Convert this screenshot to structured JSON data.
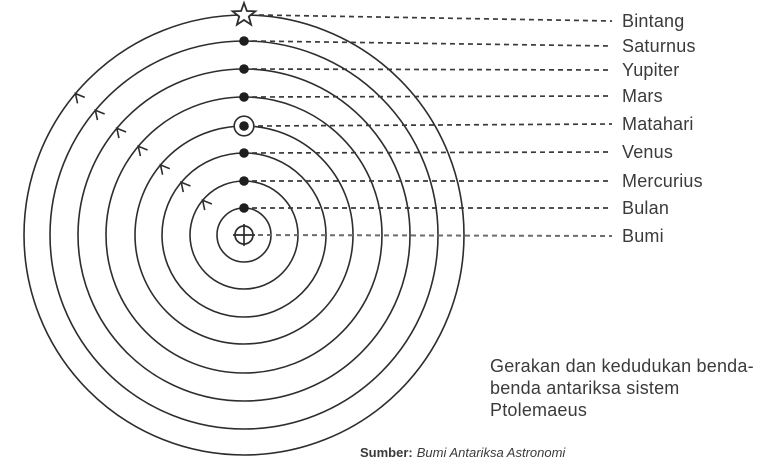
{
  "colors": {
    "background": "#ffffff",
    "orbit_line": "#2d2d2d",
    "leader_dash": "#3a3a3a",
    "leader_dash_bumi": "#6d6d6d",
    "marker_fill": "#1e1e1e",
    "text": "#3b3b3b"
  },
  "diagram": {
    "type": "concentric-orbits-geocentric",
    "system": "Ptolemaeus",
    "center_body": "Bumi",
    "bodies": [
      {
        "label": "Bintang",
        "marker": "star",
        "orbit_radius": 220,
        "arrow": true
      },
      {
        "label": "Saturnus",
        "marker": "dot",
        "orbit_radius": 194,
        "arrow": true
      },
      {
        "label": "Yupiter",
        "marker": "dot",
        "orbit_radius": 166,
        "arrow": true
      },
      {
        "label": "Mars",
        "marker": "dot",
        "orbit_radius": 138,
        "arrow": true
      },
      {
        "label": "Matahari",
        "marker": "ringed-dot",
        "orbit_radius": 109,
        "arrow": true
      },
      {
        "label": "Venus",
        "marker": "dot",
        "orbit_radius": 82,
        "arrow": true
      },
      {
        "label": "Mercurius",
        "marker": "dot",
        "orbit_radius": 54,
        "arrow": true
      },
      {
        "label": "Bulan",
        "marker": "dot",
        "orbit_radius": 27,
        "arrow": false
      },
      {
        "label": "Bumi",
        "marker": "earth-symbol",
        "orbit_radius": 0,
        "arrow": false
      }
    ],
    "caption_lines": [
      "Gerakan dan kedudukan benda-",
      "benda antariksa sistem",
      "Ptolemaeus"
    ],
    "source": {
      "label": "Sumber:",
      "text": "Bumi Antariksa Astronomi"
    }
  }
}
